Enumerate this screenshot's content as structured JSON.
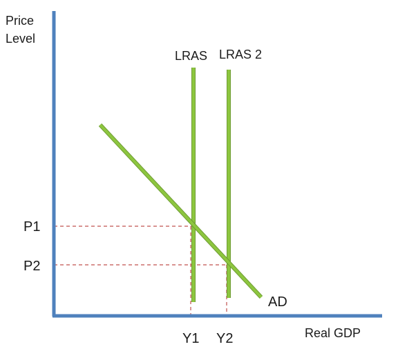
{
  "axes": {
    "y_label_line1": "Price",
    "y_label_line2": "Level",
    "x_label": "Real GDP"
  },
  "curves": {
    "lras1": "LRAS",
    "lras2": "LRAS 2",
    "ad": "AD"
  },
  "ticks": {
    "p1": "P1",
    "p2": "P2",
    "y1": "Y1",
    "y2": "Y2"
  },
  "colors": {
    "axis": "#4f81bd",
    "curve": "#8dc63f",
    "curve_edge": "#6e9b33",
    "guide": "#c0504d"
  }
}
